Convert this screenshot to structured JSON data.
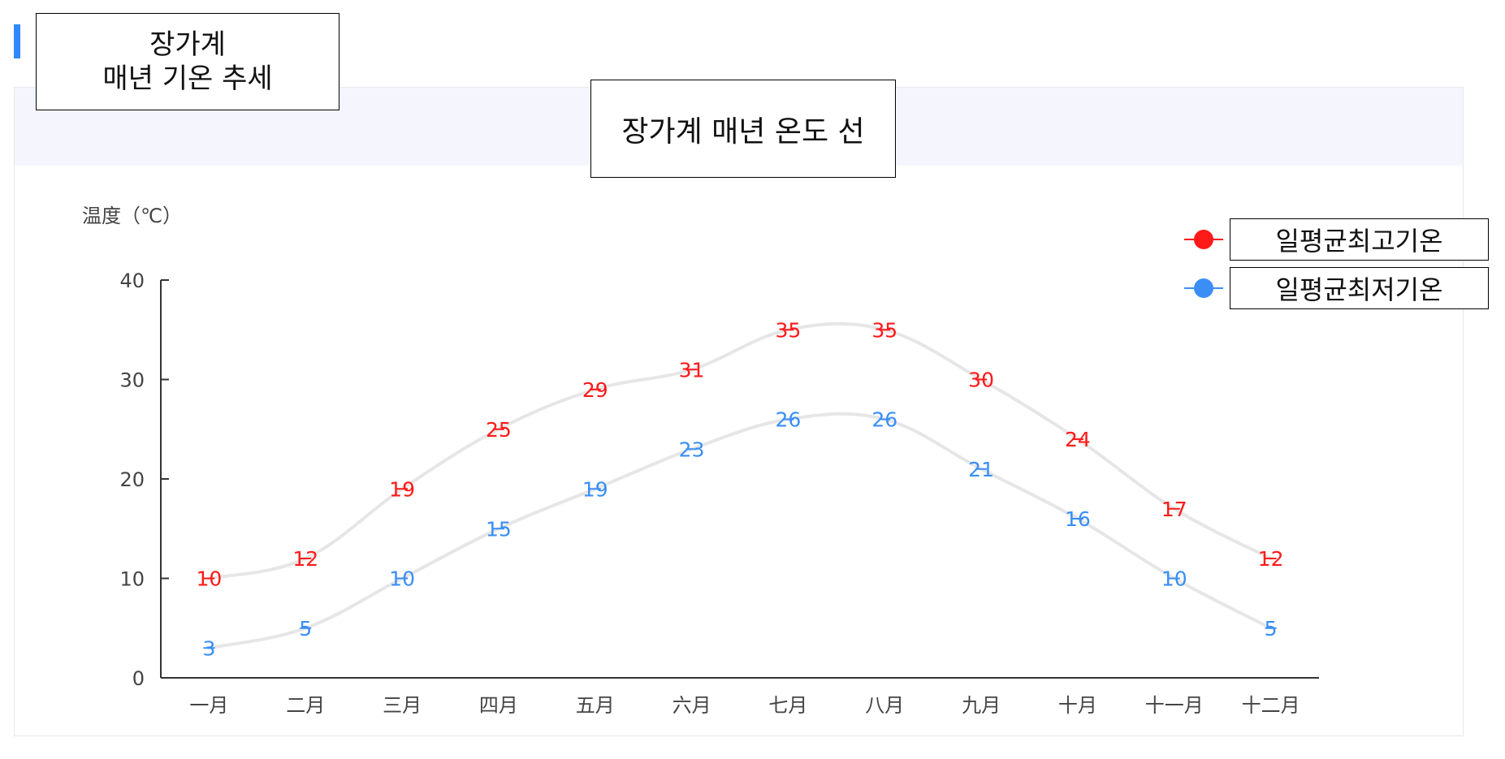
{
  "section": {
    "title": "장가계\n매년 기온 추세"
  },
  "colors": {
    "accent": "#2f89fc",
    "high": "#ff1a1a",
    "low": "#3a8ef6",
    "line": "#e6e6e6",
    "axis": "#333333"
  },
  "chart_data": {
    "type": "line",
    "title": "장가계 매년 온도 선",
    "ylabel": "温度（℃）",
    "xlabel": "",
    "categories": [
      "一月",
      "二月",
      "三月",
      "四月",
      "五月",
      "六月",
      "七月",
      "八月",
      "九月",
      "十月",
      "十一月",
      "十二月"
    ],
    "ylim": [
      0,
      40
    ],
    "yticks": [
      0,
      10,
      20,
      30,
      40
    ],
    "grid": false,
    "legend_position": "top-right",
    "series": [
      {
        "name": "일평균최고기온",
        "color": "#ff1a1a",
        "values": [
          10,
          12,
          19,
          25,
          29,
          31,
          35,
          35,
          30,
          24,
          17,
          12
        ]
      },
      {
        "name": "일평균최저기온",
        "color": "#3a8ef6",
        "values": [
          3,
          5,
          10,
          15,
          19,
          23,
          26,
          26,
          21,
          16,
          10,
          5
        ]
      }
    ]
  }
}
